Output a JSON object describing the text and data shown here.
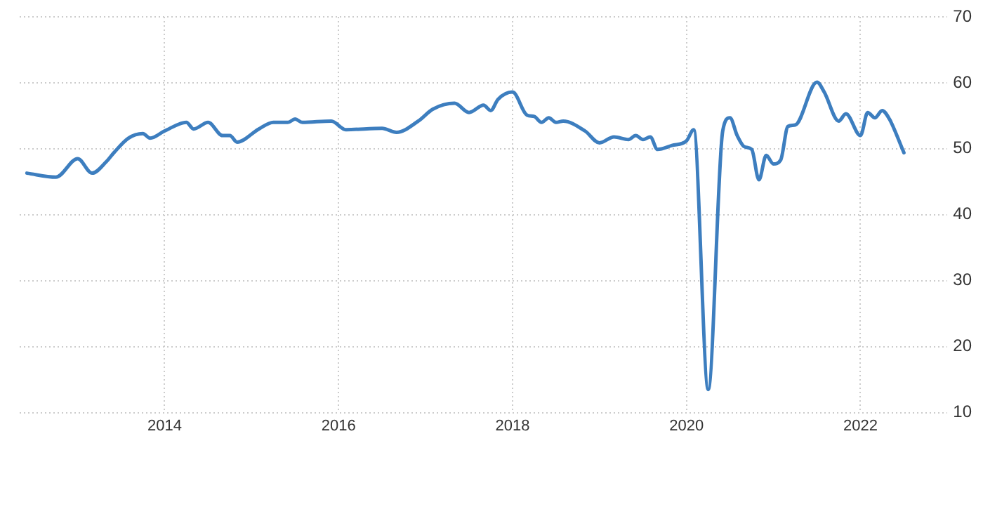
{
  "chart_data": {
    "type": "line",
    "x": [
      "2012-06",
      "2012-10",
      "2013-01",
      "2013-03",
      "2013-05",
      "2013-06",
      "2013-08",
      "2013-10",
      "2013-11",
      "2014-01",
      "2014-04",
      "2014-05",
      "2014-07",
      "2014-09",
      "2014-10",
      "2014-11",
      "2015-02",
      "2015-04",
      "2015-06",
      "2015-07",
      "2015-08",
      "2015-12",
      "2016-02",
      "2016-07",
      "2016-09",
      "2016-12",
      "2017-02",
      "2017-05",
      "2017-07",
      "2017-09",
      "2017-10",
      "2017-11",
      "2018-01",
      "2018-03",
      "2018-04",
      "2018-05",
      "2018-06",
      "2018-07",
      "2018-08",
      "2018-11",
      "2019-01",
      "2019-03",
      "2019-05",
      "2019-06",
      "2019-07",
      "2019-08",
      "2019-09",
      "2019-11",
      "2020-01",
      "2020-02",
      "2020-04",
      "2020-06",
      "2020-07",
      "2020-08",
      "2020-09",
      "2020-10",
      "2020-11",
      "2020-12",
      "2021-01",
      "2021-02",
      "2021-03",
      "2021-04",
      "2021-07",
      "2021-08",
      "2021-10",
      "2021-11",
      "2022-01",
      "2022-02",
      "2022-03",
      "2022-04",
      "2022-05",
      "2022-07"
    ],
    "series": [
      {
        "color": "#3d7ebf",
        "values": [
          46.3,
          45.7,
          48.5,
          46.3,
          48.1,
          49.4,
          51.6,
          52.3,
          51.6,
          52.7,
          54,
          53,
          54,
          52,
          52,
          51,
          53,
          54,
          54,
          54.5,
          54,
          54.2,
          52.9,
          53.1,
          52.5,
          54.2,
          56,
          56.9,
          55.5,
          56.6,
          55.8,
          57.5,
          58.6,
          55.1,
          54.9,
          54,
          54.7,
          54,
          54.2,
          52.7,
          50.9,
          51.8,
          51.4,
          52,
          51.4,
          51.8,
          49.9,
          50.5,
          51.2,
          52.9,
          13.5,
          52.7,
          54.7,
          52,
          50.3,
          49.9,
          45.3,
          49,
          47.7,
          48.3,
          53.4,
          53.6,
          60.1,
          58.6,
          54.2,
          55.3,
          52,
          55.5,
          54.7,
          55.8,
          54.5,
          49.4
        ]
      }
    ],
    "xlim": [
      "2012-05",
      "2023-01"
    ],
    "xticks": [
      "2014",
      "2016",
      "2018",
      "2020",
      "2022"
    ],
    "ylim": [
      10,
      70
    ],
    "yticks": [
      10,
      20,
      30,
      40,
      50,
      60,
      70
    ],
    "grid": true,
    "legend": false,
    "marker": "none",
    "line_style": "solid"
  }
}
